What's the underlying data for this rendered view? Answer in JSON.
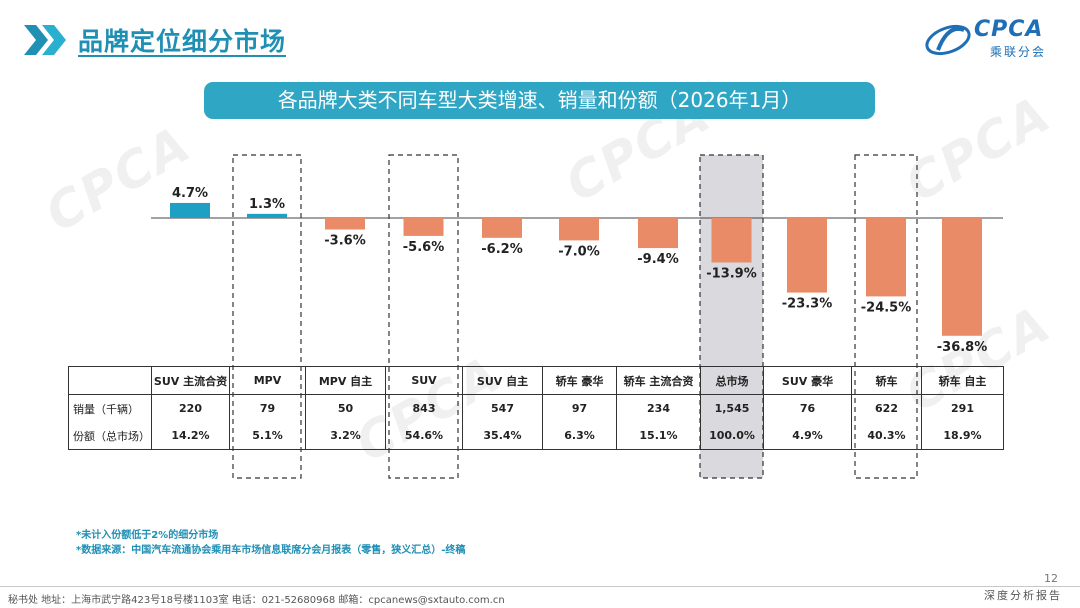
{
  "header": {
    "title": "品牌定位细分市场",
    "logo_text": "CPCA",
    "logo_sub": "乘联分会"
  },
  "banner": {
    "text": "各品牌大类不同车型大类增速、销量和份额（2026年1月）"
  },
  "colors": {
    "accent": "#1f8fb4",
    "positive_bar": "#1e9fc4",
    "negative_bar": "#e88b66",
    "highlight_bg": "#d9d9de"
  },
  "chart_data": {
    "type": "bar",
    "categories": [
      "SUV 主流合资",
      "MPV",
      "MPV 自主",
      "SUV",
      "SUV 自主",
      "轿车 豪华",
      "轿车 主流合资",
      "总市场",
      "SUV 豪华",
      "轿车",
      "轿车 自主"
    ],
    "values": [
      4.7,
      1.3,
      -3.6,
      -5.6,
      -6.2,
      -7.0,
      -9.4,
      -13.9,
      -23.3,
      -24.5,
      -36.8
    ],
    "value_labels": [
      "4.7%",
      "1.3%",
      "-3.6%",
      "-5.6%",
      "-6.2%",
      "-7.0%",
      "-9.4%",
      "-13.9%",
      "-23.3%",
      "-24.5%",
      "-36.8%"
    ],
    "dashed_boxes": [
      "MPV",
      "SUV",
      "轿车"
    ],
    "highlighted": "总市场",
    "ylim": [
      -40,
      6
    ],
    "grid": false,
    "legend": "none"
  },
  "table": {
    "row_headers": [
      "",
      "销量（千辆）",
      "份额（总市场）"
    ],
    "categories": [
      "SUV 主流合资",
      "MPV",
      "MPV 自主",
      "SUV",
      "SUV 自主",
      "轿车 豪华",
      "轿车 主流合资",
      "总市场",
      "SUV 豪华",
      "轿车",
      "轿车 自主"
    ],
    "sales": [
      "220",
      "79",
      "50",
      "843",
      "547",
      "97",
      "234",
      "1,545",
      "76",
      "622",
      "291"
    ],
    "share": [
      "14.2%",
      "5.1%",
      "3.2%",
      "54.6%",
      "35.4%",
      "6.3%",
      "15.1%",
      "100.0%",
      "4.9%",
      "40.3%",
      "18.9%"
    ]
  },
  "notes": {
    "line1": "*未计入份额低于2%的细分市场",
    "line2": "*数据来源：中国汽车流通协会乘用车市场信息联席分会月报表（零售，狭义汇总）-终稿"
  },
  "footer": {
    "text": "秘书处   地址：上海市武宁路423号18号楼1103室   电话：021-52680968   邮箱：cpcanews@sxtauto.com.cn",
    "right": "深度分析报告",
    "page": "12"
  }
}
